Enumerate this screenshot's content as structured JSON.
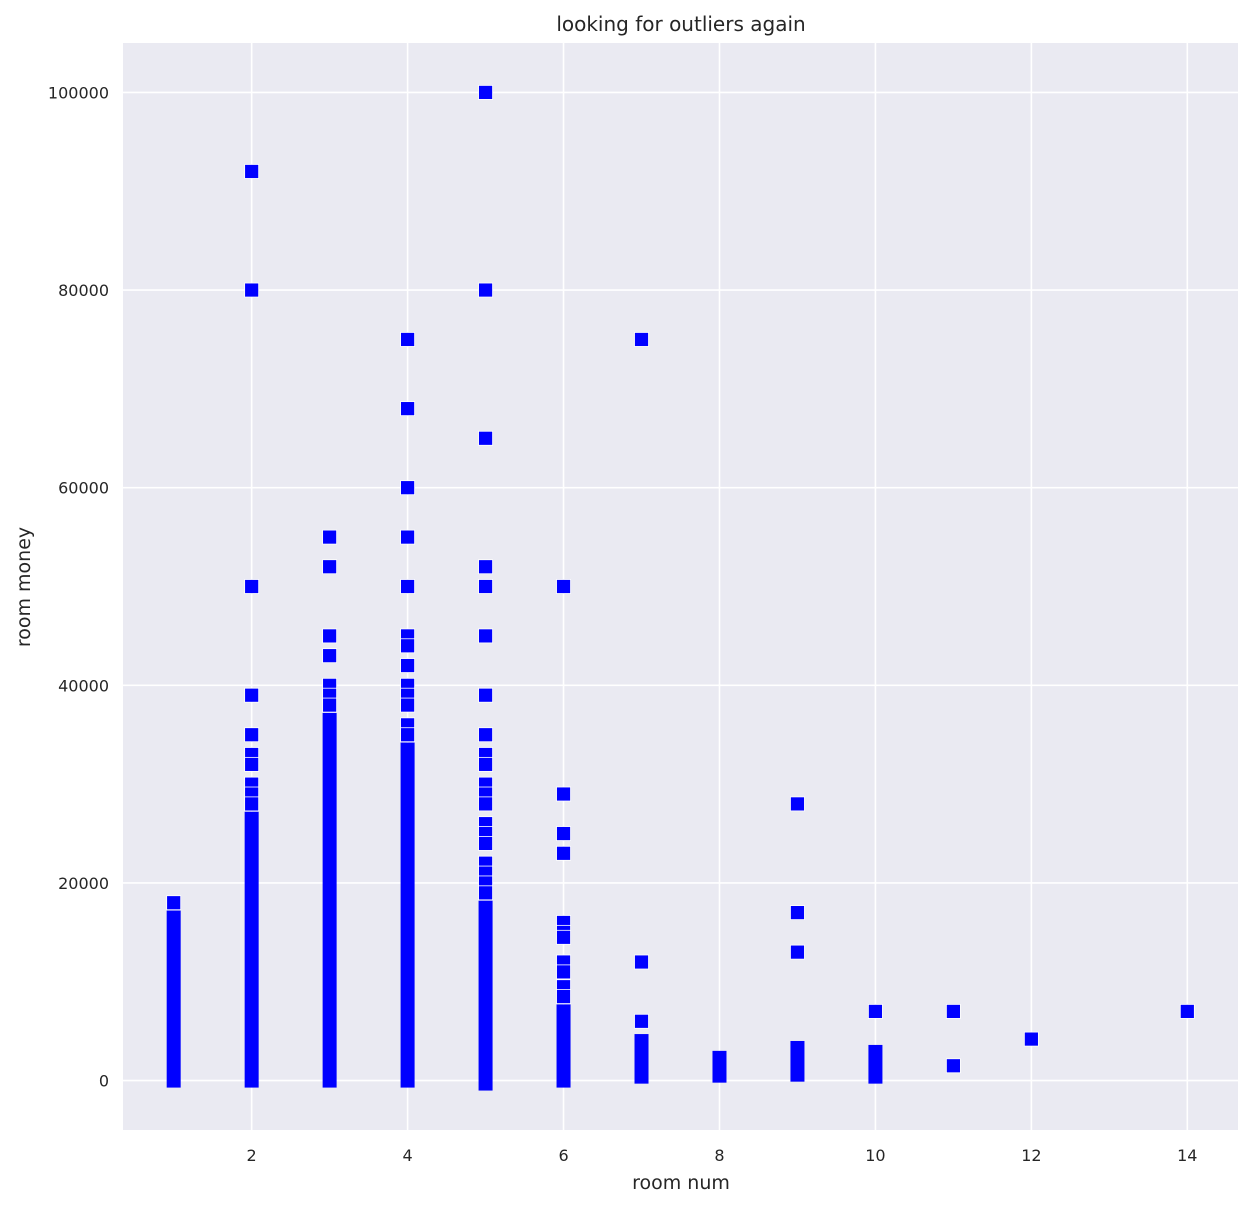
{
  "chart_data": {
    "type": "scatter",
    "title": "looking for outliers again",
    "xlabel": "room num",
    "ylabel": "room money",
    "xlim": [
      0.35,
      14.65
    ],
    "ylim": [
      -5000,
      105000
    ],
    "xticks": [
      2,
      4,
      6,
      8,
      10,
      12,
      14
    ],
    "yticks": [
      0,
      20000,
      40000,
      60000,
      80000,
      100000
    ],
    "xtick_labels": [
      "2",
      "4",
      "6",
      "8",
      "10",
      "12",
      "14"
    ],
    "ytick_labels": [
      "0",
      "20000",
      "40000",
      "60000",
      "80000",
      "100000"
    ],
    "grid": true,
    "marker": "square",
    "colors": {
      "background": "#eaeaf2",
      "grid": "#ffffff",
      "marker": "#0000ff"
    },
    "point_groups": [
      {
        "x": 1,
        "values": [
          18000
        ],
        "ranges": [
          [
            0,
            16500
          ]
        ]
      },
      {
        "x": 2,
        "values": [
          92000,
          80000,
          50000,
          39000,
          35000,
          33000,
          32000,
          30000,
          29000,
          28000
        ],
        "ranges": [
          [
            0,
            26500
          ]
        ]
      },
      {
        "x": 3,
        "values": [
          55000,
          52000,
          45000,
          43000,
          40000,
          39000,
          38000
        ],
        "ranges": [
          [
            0,
            36500
          ]
        ]
      },
      {
        "x": 4,
        "values": [
          75000,
          68000,
          60000,
          55000,
          50000,
          45000,
          44000,
          42000,
          40000,
          39000,
          38000,
          36000,
          35000
        ],
        "ranges": [
          [
            0,
            33500
          ]
        ]
      },
      {
        "x": 5,
        "values": [
          100000,
          80000,
          65000,
          52000,
          50000,
          45000,
          39000,
          35000,
          33000,
          32000,
          30000,
          29000,
          28000,
          26000,
          25000,
          24000,
          22000,
          21000,
          20000,
          19000
        ],
        "ranges": [
          [
            -300,
            17500
          ]
        ]
      },
      {
        "x": 6,
        "values": [
          50000,
          29000,
          25000,
          23000,
          16000,
          15000,
          14500,
          12000,
          11000,
          9500,
          8500
        ],
        "ranges": [
          [
            0,
            7000
          ]
        ]
      },
      {
        "x": 7,
        "values": [
          75000,
          12000,
          6000
        ],
        "ranges": [
          [
            400,
            4000
          ]
        ]
      },
      {
        "x": 8,
        "values": [],
        "ranges": [
          [
            500,
            2300
          ]
        ]
      },
      {
        "x": 9,
        "values": [
          28000,
          17000,
          13000
        ],
        "ranges": [
          [
            600,
            3300
          ]
        ]
      },
      {
        "x": 10,
        "values": [
          7000
        ],
        "ranges": [
          [
            400,
            2900
          ]
        ]
      },
      {
        "x": 11,
        "values": [
          7000,
          1500
        ],
        "ranges": []
      },
      {
        "x": 12,
        "values": [
          4200
        ],
        "ranges": []
      },
      {
        "x": 14,
        "values": [
          7000
        ],
        "ranges": []
      }
    ]
  }
}
